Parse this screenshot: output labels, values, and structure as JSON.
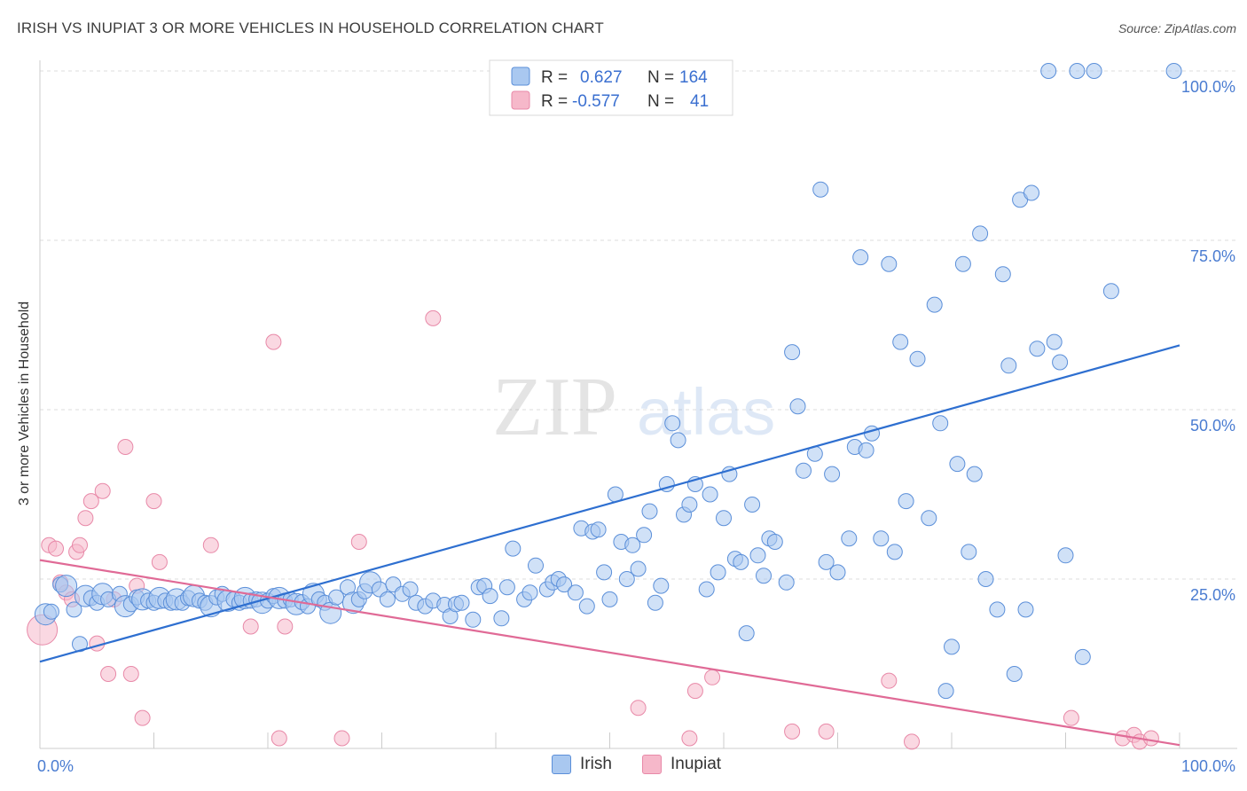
{
  "header": {
    "title": "IRISH VS INUPIAT 3 OR MORE VEHICLES IN HOUSEHOLD CORRELATION CHART",
    "source": "Source: ZipAtlas.com"
  },
  "watermark": {
    "zip": "ZIP",
    "atlas": "atlas"
  },
  "legend": {
    "r_label": "R =",
    "n_label": "N =",
    "rows": [
      {
        "series": "Irish",
        "r": "0.627",
        "n": "164"
      },
      {
        "series": "Inupiat",
        "r": "-0.577",
        "n": "41"
      }
    ]
  },
  "colors": {
    "irish_fill": "#a9c8f0",
    "irish_stroke": "#5b8fd9",
    "irish_line": "#2e6fd0",
    "inupiat_fill": "#f6b8ca",
    "inupiat_stroke": "#e889a8",
    "inupiat_line": "#e06a96",
    "value_text": "#3a6fd0",
    "grid": "#dcdcdc"
  },
  "chart_data": {
    "type": "scatter",
    "title": "IRISH VS INUPIAT 3 OR MORE VEHICLES IN HOUSEHOLD CORRELATION CHART",
    "xlabel": "",
    "ylabel": "3 or more Vehicles in Household",
    "xlim": [
      0,
      100
    ],
    "ylim": [
      0,
      100
    ],
    "x_tick_labels": [
      "0.0%",
      "100.0%"
    ],
    "y_tick_labels": [
      {
        "value": 25,
        "label": "25.0%"
      },
      {
        "value": 50,
        "label": "50.0%"
      },
      {
        "value": 75,
        "label": "75.0%"
      },
      {
        "value": 100,
        "label": "100.0%"
      }
    ],
    "grid": true,
    "legend_position": "top-center",
    "series": [
      {
        "name": "Irish",
        "trend": {
          "x": [
            0,
            100
          ],
          "y": [
            12.8,
            59.5
          ]
        },
        "points": [
          [
            0.5,
            19.8
          ],
          [
            1.0,
            20.2
          ],
          [
            1.8,
            24.2
          ],
          [
            2.3,
            24.0
          ],
          [
            3.0,
            20.5
          ],
          [
            3.5,
            15.4
          ],
          [
            4.0,
            22.5
          ],
          [
            4.5,
            22.2
          ],
          [
            5.0,
            21.5
          ],
          [
            5.5,
            22.8
          ],
          [
            6.0,
            22.0
          ],
          [
            7.0,
            22.8
          ],
          [
            7.5,
            21.0
          ],
          [
            8.0,
            21.3
          ],
          [
            8.5,
            22.3
          ],
          [
            9.0,
            22.0
          ],
          [
            9.5,
            21.8
          ],
          [
            10.0,
            21.5
          ],
          [
            10.5,
            22.2
          ],
          [
            11.0,
            21.8
          ],
          [
            11.5,
            21.5
          ],
          [
            12.0,
            22.0
          ],
          [
            12.5,
            21.5
          ],
          [
            13.0,
            22.2
          ],
          [
            13.5,
            22.5
          ],
          [
            14.0,
            21.8
          ],
          [
            14.5,
            21.5
          ],
          [
            15.0,
            21.0
          ],
          [
            15.5,
            22.3
          ],
          [
            16.0,
            22.8
          ],
          [
            16.5,
            21.8
          ],
          [
            17.0,
            22.0
          ],
          [
            17.5,
            21.5
          ],
          [
            18.0,
            22.2
          ],
          [
            18.5,
            21.8
          ],
          [
            19.0,
            22.0
          ],
          [
            19.5,
            21.5
          ],
          [
            20.0,
            21.8
          ],
          [
            20.5,
            22.5
          ],
          [
            21.0,
            22.2
          ],
          [
            21.5,
            21.8
          ],
          [
            22.0,
            22.0
          ],
          [
            22.5,
            21.3
          ],
          [
            23.0,
            21.6
          ],
          [
            23.5,
            21.0
          ],
          [
            24.0,
            22.8
          ],
          [
            24.5,
            22.0
          ],
          [
            25.0,
            21.5
          ],
          [
            25.5,
            20.0
          ],
          [
            26.0,
            22.3
          ],
          [
            27.0,
            23.8
          ],
          [
            27.5,
            21.5
          ],
          [
            28.0,
            22.0
          ],
          [
            28.5,
            23.2
          ],
          [
            29.0,
            24.5
          ],
          [
            29.8,
            23.5
          ],
          [
            30.5,
            22.0
          ],
          [
            31.0,
            24.2
          ],
          [
            31.8,
            22.8
          ],
          [
            32.5,
            23.5
          ],
          [
            33.0,
            21.5
          ],
          [
            33.8,
            21.0
          ],
          [
            34.5,
            21.8
          ],
          [
            35.5,
            21.2
          ],
          [
            36.0,
            19.5
          ],
          [
            36.5,
            21.3
          ],
          [
            37.0,
            21.5
          ],
          [
            38.0,
            19.0
          ],
          [
            38.5,
            23.8
          ],
          [
            39.0,
            24.0
          ],
          [
            39.5,
            22.5
          ],
          [
            40.5,
            19.2
          ],
          [
            41.0,
            23.8
          ],
          [
            41.5,
            29.5
          ],
          [
            42.5,
            22.0
          ],
          [
            43.0,
            23.0
          ],
          [
            43.5,
            27.0
          ],
          [
            44.5,
            23.5
          ],
          [
            45.0,
            24.5
          ],
          [
            45.5,
            25.0
          ],
          [
            46.0,
            24.2
          ],
          [
            47.0,
            23.0
          ],
          [
            47.5,
            32.5
          ],
          [
            48.0,
            21.0
          ],
          [
            48.5,
            32.0
          ],
          [
            49.0,
            32.3
          ],
          [
            49.5,
            26.0
          ],
          [
            50.0,
            22.0
          ],
          [
            50.5,
            37.5
          ],
          [
            51.0,
            30.5
          ],
          [
            51.5,
            25.0
          ],
          [
            52.0,
            30.0
          ],
          [
            52.5,
            26.5
          ],
          [
            53.0,
            31.5
          ],
          [
            53.5,
            35.0
          ],
          [
            54.0,
            21.5
          ],
          [
            54.5,
            24.0
          ],
          [
            55.0,
            39.0
          ],
          [
            55.5,
            48.0
          ],
          [
            56.0,
            45.5
          ],
          [
            56.5,
            34.5
          ],
          [
            57.0,
            36.0
          ],
          [
            57.5,
            39.0
          ],
          [
            58.5,
            23.5
          ],
          [
            58.8,
            37.5
          ],
          [
            59.5,
            26.0
          ],
          [
            60.0,
            34.0
          ],
          [
            60.5,
            40.5
          ],
          [
            61.0,
            28.0
          ],
          [
            61.5,
            27.5
          ],
          [
            62.0,
            17.0
          ],
          [
            62.5,
            36.0
          ],
          [
            63.0,
            28.5
          ],
          [
            63.5,
            25.5
          ],
          [
            64.0,
            31.0
          ],
          [
            64.5,
            30.5
          ],
          [
            65.5,
            24.5
          ],
          [
            66.0,
            58.5
          ],
          [
            66.5,
            50.5
          ],
          [
            67.0,
            41.0
          ],
          [
            68.0,
            43.5
          ],
          [
            68.5,
            82.5
          ],
          [
            69.0,
            27.5
          ],
          [
            69.5,
            40.5
          ],
          [
            70.0,
            26.0
          ],
          [
            71.0,
            31.0
          ],
          [
            71.5,
            44.5
          ],
          [
            72.0,
            72.5
          ],
          [
            72.5,
            44.0
          ],
          [
            73.0,
            46.5
          ],
          [
            73.8,
            31.0
          ],
          [
            74.5,
            71.5
          ],
          [
            75.0,
            29.0
          ],
          [
            75.5,
            60.0
          ],
          [
            76.0,
            36.5
          ],
          [
            77.0,
            57.5
          ],
          [
            78.0,
            34.0
          ],
          [
            78.5,
            65.5
          ],
          [
            79.0,
            48.0
          ],
          [
            79.5,
            8.5
          ],
          [
            80.0,
            15.0
          ],
          [
            80.5,
            42.0
          ],
          [
            81.0,
            71.5
          ],
          [
            81.5,
            29.0
          ],
          [
            82.0,
            40.5
          ],
          [
            82.5,
            76.0
          ],
          [
            83.0,
            25.0
          ],
          [
            84.0,
            20.5
          ],
          [
            84.5,
            70.0
          ],
          [
            85.0,
            56.5
          ],
          [
            85.5,
            11.0
          ],
          [
            86.0,
            81.0
          ],
          [
            86.5,
            20.5
          ],
          [
            87.0,
            82.0
          ],
          [
            87.5,
            59.0
          ],
          [
            88.5,
            100.0
          ],
          [
            89.0,
            60.0
          ],
          [
            89.5,
            57.0
          ],
          [
            90.0,
            28.5
          ],
          [
            91.0,
            100.0
          ],
          [
            91.5,
            13.5
          ],
          [
            92.5,
            100.0
          ],
          [
            94.0,
            67.5
          ],
          [
            99.5,
            100.0
          ]
        ]
      },
      {
        "name": "Inupiat",
        "trend": {
          "x": [
            0,
            100
          ],
          "y": [
            27.8,
            0.5
          ]
        },
        "points": [
          [
            0.2,
            17.5
          ],
          [
            0.8,
            30.0
          ],
          [
            1.4,
            29.5
          ],
          [
            1.8,
            24.5
          ],
          [
            2.3,
            23.0
          ],
          [
            2.8,
            22.0
          ],
          [
            3.2,
            29.0
          ],
          [
            3.5,
            30.0
          ],
          [
            4.0,
            34.0
          ],
          [
            4.5,
            36.5
          ],
          [
            5.0,
            15.5
          ],
          [
            5.5,
            38.0
          ],
          [
            6.0,
            11.0
          ],
          [
            6.5,
            22.0
          ],
          [
            7.5,
            44.5
          ],
          [
            8.0,
            11.0
          ],
          [
            8.5,
            24.0
          ],
          [
            9.0,
            4.5
          ],
          [
            10.0,
            36.5
          ],
          [
            10.5,
            27.5
          ],
          [
            15.0,
            30.0
          ],
          [
            18.5,
            18.0
          ],
          [
            20.5,
            60.0
          ],
          [
            21.0,
            1.5
          ],
          [
            21.5,
            18.0
          ],
          [
            26.5,
            1.5
          ],
          [
            28.0,
            30.5
          ],
          [
            34.5,
            63.5
          ],
          [
            52.5,
            6.0
          ],
          [
            57.0,
            1.5
          ],
          [
            57.5,
            8.5
          ],
          [
            59.0,
            10.5
          ],
          [
            66.0,
            2.5
          ],
          [
            69.0,
            2.5
          ],
          [
            74.5,
            10.0
          ],
          [
            76.5,
            1.0
          ],
          [
            90.5,
            4.5
          ],
          [
            95.0,
            1.5
          ],
          [
            96.0,
            2.0
          ],
          [
            96.5,
            1.0
          ],
          [
            97.5,
            1.5
          ]
        ]
      }
    ]
  },
  "bottom_legend": [
    {
      "label": "Irish"
    },
    {
      "label": "Inupiat"
    }
  ]
}
